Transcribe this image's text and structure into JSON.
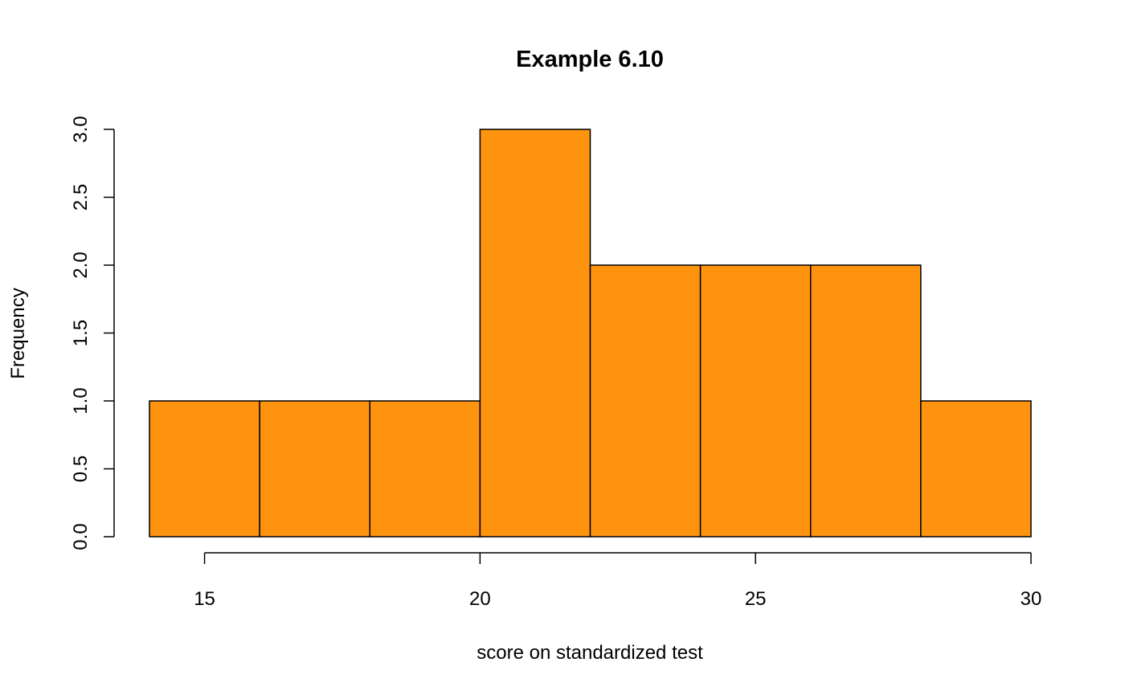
{
  "chart_data": {
    "type": "bar",
    "subtype": "histogram",
    "title": "Example 6.10",
    "xlabel": "score on standardized test",
    "ylabel": "Frequency",
    "bins": [
      {
        "from": 14,
        "to": 16,
        "count": 1
      },
      {
        "from": 16,
        "to": 18,
        "count": 1
      },
      {
        "from": 18,
        "to": 20,
        "count": 1
      },
      {
        "from": 20,
        "to": 22,
        "count": 3
      },
      {
        "from": 22,
        "to": 24,
        "count": 2
      },
      {
        "from": 24,
        "to": 26,
        "count": 2
      },
      {
        "from": 26,
        "to": 28,
        "count": 2
      },
      {
        "from": 28,
        "to": 30,
        "count": 1
      }
    ],
    "xlim": [
      14,
      30
    ],
    "ylim": [
      0,
      3
    ],
    "x_ticks": [
      "15",
      "20",
      "25",
      "30"
    ],
    "y_ticks": [
      "0.0",
      "0.5",
      "1.0",
      "1.5",
      "2.0",
      "2.5",
      "3.0"
    ],
    "bar_color": "#fd930f",
    "grid": false
  }
}
